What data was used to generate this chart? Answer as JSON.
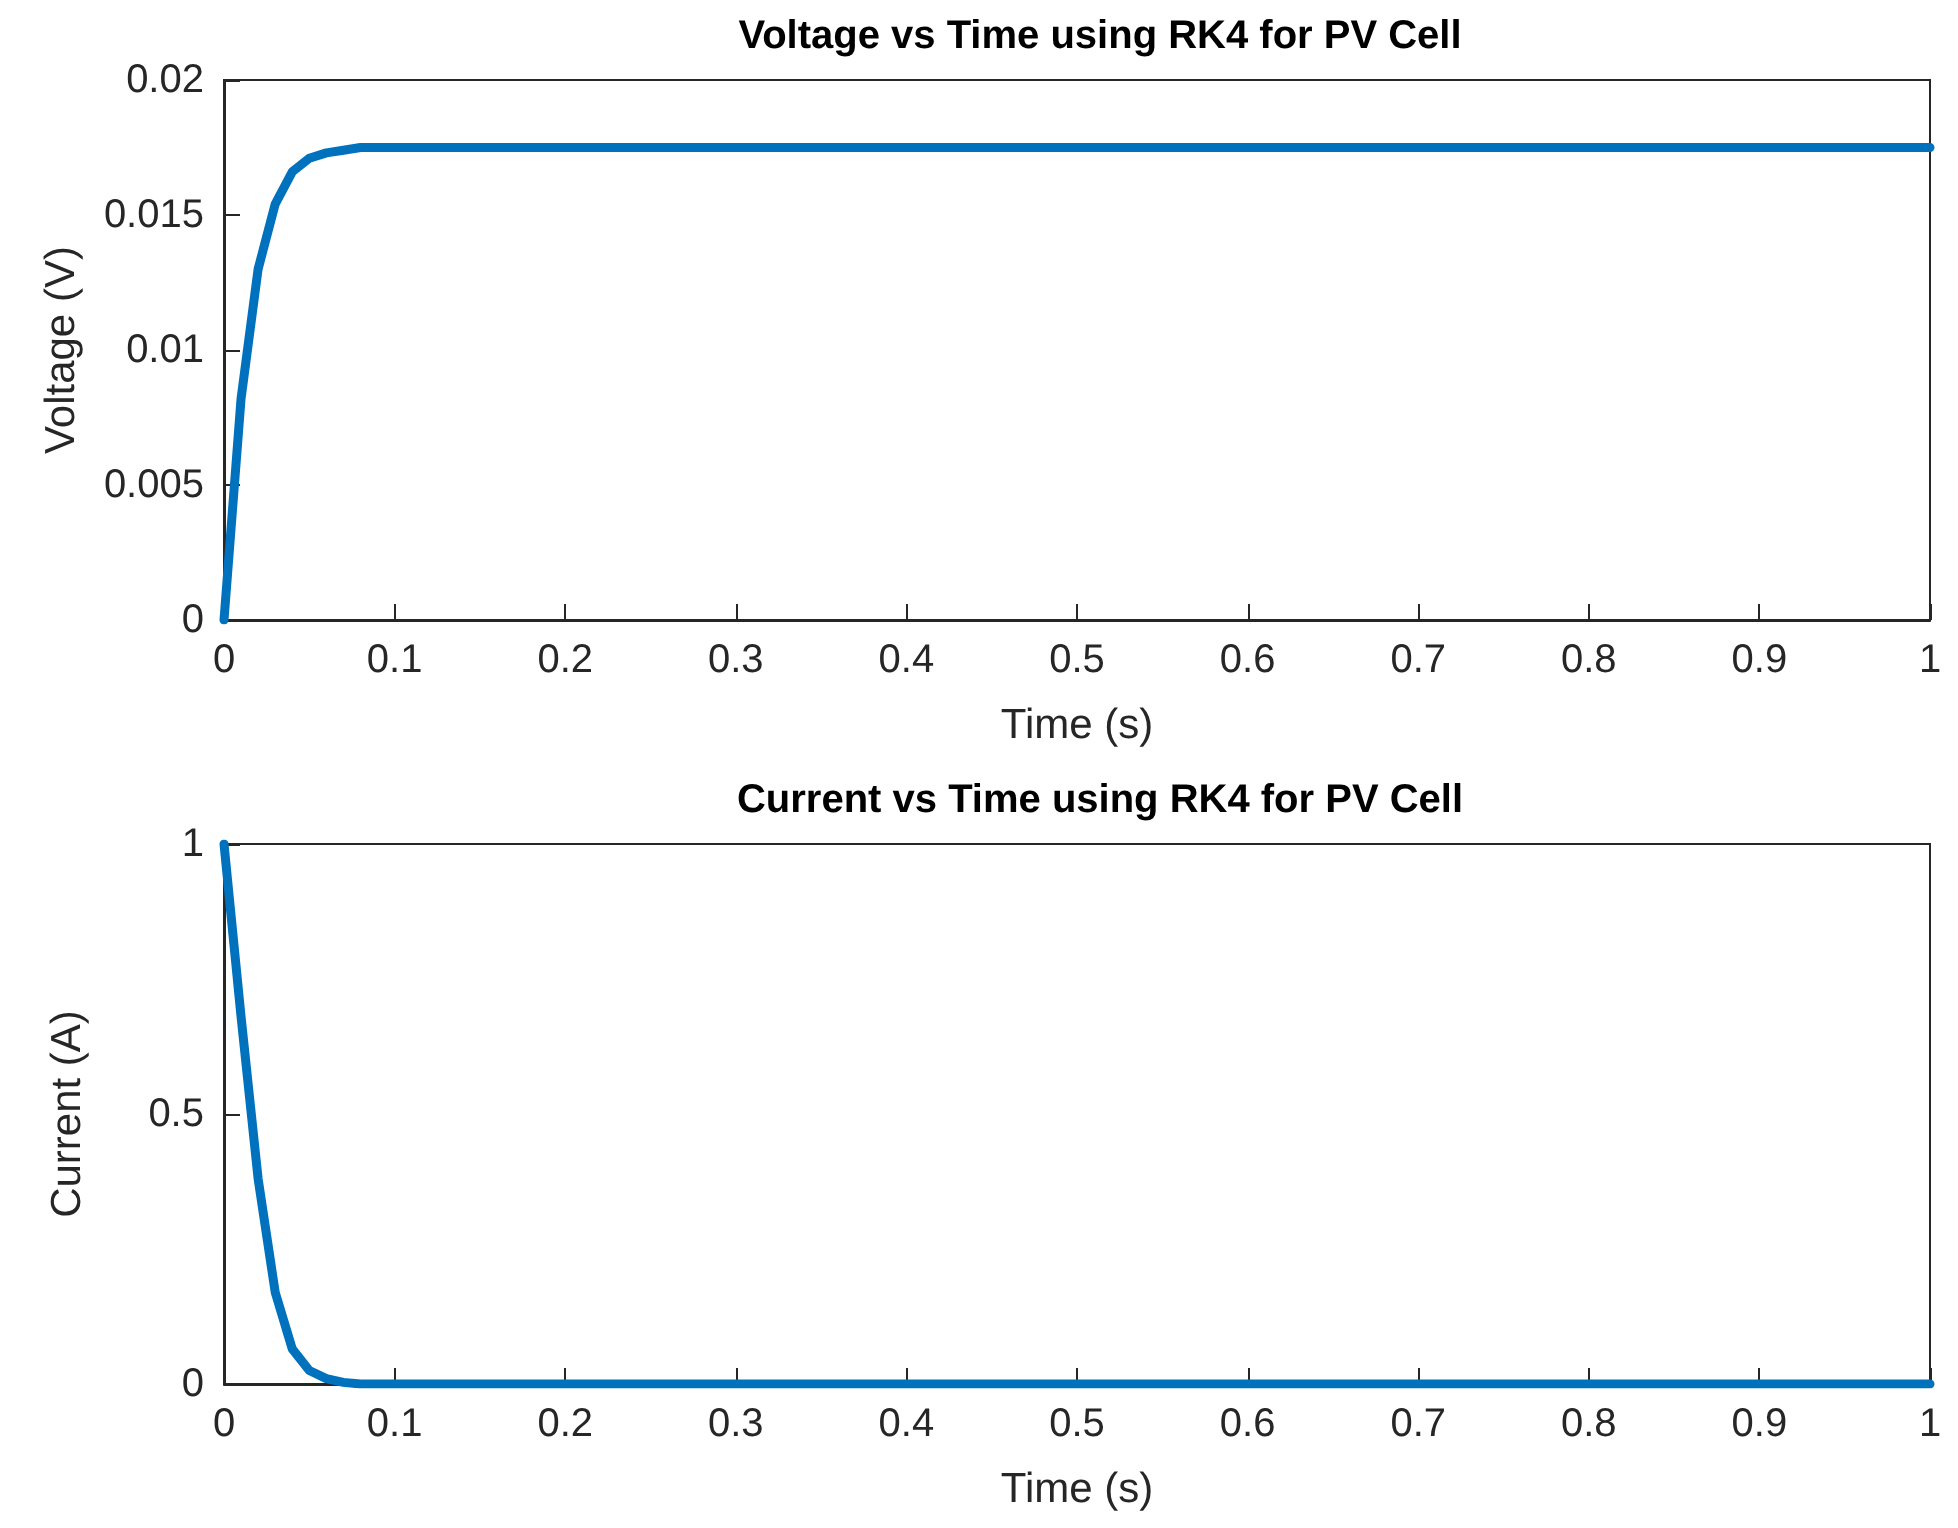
{
  "chart_data": [
    {
      "type": "line",
      "title": "Voltage vs Time using RK4 for PV Cell",
      "xlabel": "Time (s)",
      "ylabel": "Voltage (V)",
      "x": [
        0,
        0.01,
        0.02,
        0.03,
        0.04,
        0.05,
        0.06,
        0.07,
        0.08,
        1
      ],
      "series": [
        {
          "color": "#0072bd",
          "values": [
            0,
            0.0082,
            0.013,
            0.0154,
            0.0166,
            0.0171,
            0.0173,
            0.0174,
            0.0175,
            0.0175
          ]
        }
      ],
      "xlim": [
        0,
        1
      ],
      "xticks": [
        0,
        0.1,
        0.2,
        0.3,
        0.4,
        0.5,
        0.6,
        0.7,
        0.8,
        0.9,
        1
      ],
      "ylim": [
        0,
        0.02
      ],
      "yticks": [
        0,
        0.005,
        0.01,
        0.015,
        0.02
      ],
      "grid": false,
      "marker": "none",
      "line_style": "solid"
    },
    {
      "type": "line",
      "title": "Current vs Time using RK4 for PV Cell",
      "xlabel": "Time (s)",
      "ylabel": "Current (A)",
      "x": [
        0,
        0.01,
        0.02,
        0.03,
        0.04,
        0.05,
        0.06,
        0.07,
        0.08,
        1
      ],
      "series": [
        {
          "color": "#0072bd",
          "values": [
            1,
            0.68,
            0.38,
            0.17,
            0.065,
            0.025,
            0.01,
            0.003,
            0,
            0
          ]
        }
      ],
      "xlim": [
        0,
        1
      ],
      "xticks": [
        0,
        0.1,
        0.2,
        0.3,
        0.4,
        0.5,
        0.6,
        0.7,
        0.8,
        0.9,
        1
      ],
      "ylim": [
        0,
        1
      ],
      "yticks": [
        0,
        0.5,
        1
      ],
      "grid": false,
      "marker": "none",
      "line_style": "solid"
    }
  ]
}
